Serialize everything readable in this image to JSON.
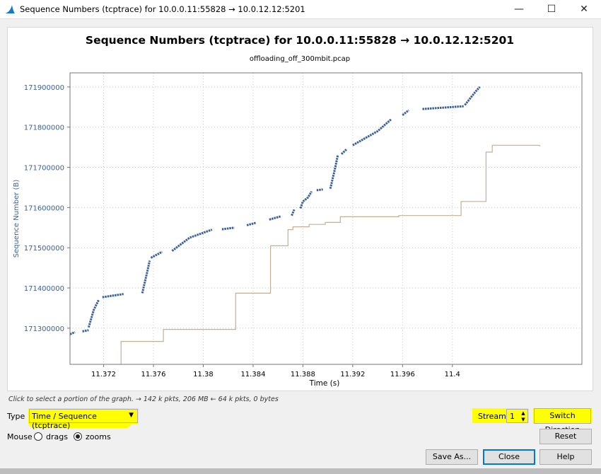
{
  "window": {
    "title": "Sequence Numbers (tcptrace) for 10.0.0.11:55828 → 10.0.12.12:5201",
    "minimize_glyph": "—",
    "maximize_glyph": "☐",
    "close_glyph": "✕"
  },
  "chart_data": {
    "type": "scatter",
    "title": "Sequence Numbers (tcptrace) for 10.0.0.11:55828 → 10.0.12.12:5201",
    "subtitle": "offloading_off_300mbit.pcap",
    "xlabel": "Time (s)",
    "ylabel": "Sequence Number (B)",
    "xlim": [
      11.3693,
      11.4104
    ],
    "ylim": [
      171210000,
      171935000
    ],
    "x_ticks": [
      "11.372",
      "11.376",
      "11.38",
      "11.384",
      "11.388",
      "11.392",
      "11.396",
      "11.4"
    ],
    "x_tick_values": [
      11.372,
      11.376,
      11.38,
      11.384,
      11.388,
      11.392,
      11.396,
      11.4
    ],
    "y_ticks": [
      "171300000",
      "171400000",
      "171500000",
      "171600000",
      "171700000",
      "171800000",
      "171900000"
    ],
    "y_tick_values": [
      171300000,
      171400000,
      171500000,
      171600000,
      171700000,
      171800000,
      171900000
    ],
    "grid": true,
    "series": [
      {
        "color": "#3a5f9a",
        "segments": [
          [
            [
              11.3693,
              171285000
            ],
            [
              11.3697,
              171290000
            ]
          ],
          [
            [
              11.3703,
              171292000
            ],
            [
              11.3708,
              171295000
            ]
          ],
          [
            [
              11.3708,
              171302000
            ],
            [
              11.3712,
              171345000
            ],
            [
              11.3716,
              171370000
            ]
          ],
          [
            [
              11.3719,
              171377000
            ],
            [
              11.3736,
              171385000
            ]
          ],
          [
            [
              11.3751,
              171387000
            ],
            [
              11.3755,
              171440000
            ],
            [
              11.3757,
              171468000
            ]
          ],
          [
            [
              11.3758,
              171475000
            ],
            [
              11.3767,
              171490000
            ]
          ],
          [
            [
              11.3775,
              171492000
            ],
            [
              11.3789,
              171525000
            ],
            [
              11.3807,
              171545000
            ]
          ],
          [
            [
              11.3815,
              171546000
            ],
            [
              11.3825,
              171550000
            ]
          ],
          [
            [
              11.3835,
              171556000
            ],
            [
              11.3842,
              171562000
            ]
          ],
          [
            [
              11.3853,
              171570000
            ],
            [
              11.3862,
              171578000
            ]
          ],
          [
            [
              11.3871,
              171580000
            ],
            [
              11.3873,
              171595000
            ]
          ],
          [
            [
              11.3878,
              171598000
            ],
            [
              11.388,
              171615000
            ],
            [
              11.3884,
              171625000
            ],
            [
              11.3887,
              171640000
            ]
          ],
          [
            [
              11.3891,
              171643000
            ],
            [
              11.3896,
              171645000
            ]
          ],
          [
            [
              11.3902,
              171647000
            ],
            [
              11.3906,
              171700000
            ],
            [
              11.3908,
              171730000
            ]
          ],
          [
            [
              11.3911,
              171733000
            ],
            [
              11.3915,
              171745000
            ]
          ],
          [
            [
              11.392,
              171755000
            ],
            [
              11.394,
              171790000
            ],
            [
              11.3951,
              171820000
            ]
          ],
          [
            [
              11.396,
              171830000
            ],
            [
              11.3965,
              171842000
            ]
          ],
          [
            [
              11.3976,
              171845000
            ],
            [
              11.4009,
              171852000
            ]
          ],
          [
            [
              11.401,
              171855000
            ],
            [
              11.4019,
              171890000
            ],
            [
              11.4022,
              171900000
            ]
          ]
        ]
      },
      {
        "color": "#c2b095",
        "step": [
          [
            11.3734,
            171200000
          ],
          [
            11.3734,
            171267000
          ],
          [
            11.3768,
            171267000
          ],
          [
            11.3768,
            171297000
          ],
          [
            11.3826,
            171297000
          ],
          [
            11.3826,
            171387000
          ],
          [
            11.3854,
            171387000
          ],
          [
            11.3854,
            171505000
          ],
          [
            11.3868,
            171505000
          ],
          [
            11.3868,
            171545000
          ],
          [
            11.3872,
            171545000
          ],
          [
            11.3872,
            171552000
          ],
          [
            11.3885,
            171552000
          ],
          [
            11.3885,
            171558000
          ],
          [
            11.3898,
            171558000
          ],
          [
            11.3898,
            171563000
          ],
          [
            11.391,
            171563000
          ],
          [
            11.391,
            171577000
          ],
          [
            11.3957,
            171577000
          ],
          [
            11.3957,
            171580000
          ],
          [
            11.4007,
            171580000
          ],
          [
            11.4007,
            171615000
          ],
          [
            11.4027,
            171615000
          ],
          [
            11.4027,
            171738000
          ],
          [
            11.4032,
            171738000
          ],
          [
            11.4032,
            171755000
          ],
          [
            11.407,
            171755000
          ],
          [
            11.407,
            171752000
          ]
        ]
      }
    ]
  },
  "hint": "Click to select a portion of the graph. → 142 k pkts, 206 MB ← 64 k pkts, 0 bytes",
  "controls": {
    "type_label": "Type",
    "type_value": "Time / Sequence (tcptrace)",
    "mouse_label": "Mouse",
    "drags_label": "drags",
    "zooms_label": "zooms",
    "stream_label": "Stream",
    "stream_value": "1",
    "switch_direction": "Switch Direction",
    "reset": "Reset",
    "save_as": "Save As...",
    "close": "Close",
    "help": "Help"
  }
}
